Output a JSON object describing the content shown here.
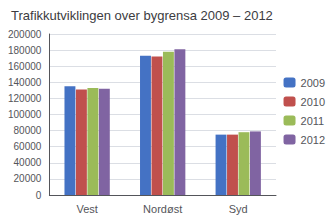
{
  "chart_data": {
    "type": "bar",
    "title": "Trafikkutviklingen over bygrensa 2009 – 2012",
    "categories": [
      "Vest",
      "Nordøst",
      "Syd"
    ],
    "series": [
      {
        "name": "2009",
        "color": "#4472C4",
        "values": [
          135000,
          173000,
          75000
        ]
      },
      {
        "name": "2010",
        "color": "#C0504D",
        "values": [
          131000,
          172000,
          75000
        ]
      },
      {
        "name": "2011",
        "color": "#9BBB59",
        "values": [
          133000,
          178000,
          78000
        ]
      },
      {
        "name": "2012",
        "color": "#8064A2",
        "values": [
          132000,
          181000,
          79000
        ]
      }
    ],
    "ylim": [
      0,
      200000
    ],
    "yticks": [
      0,
      20000,
      40000,
      60000,
      80000,
      100000,
      120000,
      140000,
      160000,
      180000,
      200000
    ],
    "grid": true,
    "legend": "right"
  }
}
